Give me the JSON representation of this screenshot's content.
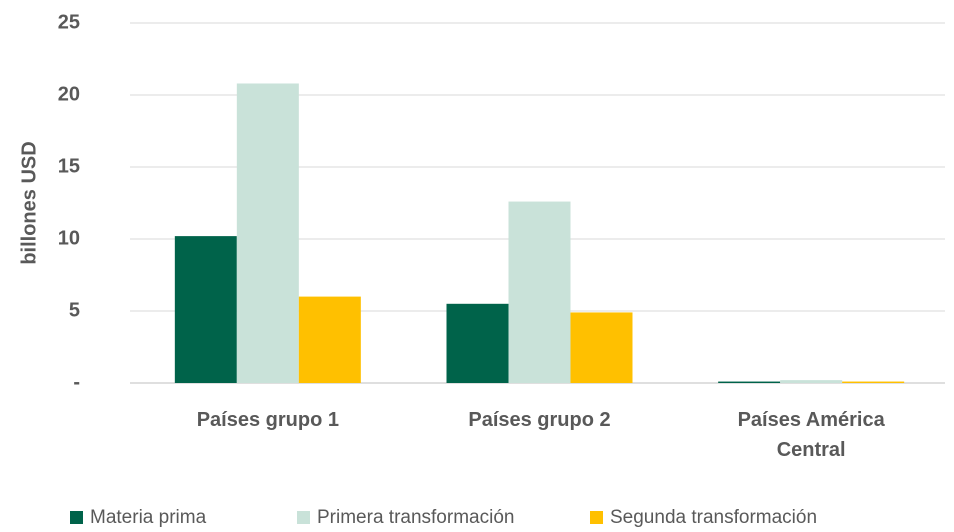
{
  "chart_data": {
    "type": "bar",
    "y_label": "billones USD",
    "categories": [
      "Países grupo 1",
      "Países grupo 2",
      "Países América Central"
    ],
    "series": [
      {
        "name": "Materia prima",
        "color": "#00634a",
        "values": [
          10.2,
          5.5,
          0.1
        ]
      },
      {
        "name": "Primera transformación",
        "color": "#c9e2d9",
        "values": [
          20.8,
          12.6,
          0.2
        ]
      },
      {
        "name": "Segunda transformación",
        "color": "#ffc000",
        "values": [
          6.0,
          4.9,
          0.1
        ]
      }
    ],
    "ylim": [
      0,
      25
    ],
    "yticks": [
      {
        "value": 0,
        "label": "-"
      },
      5,
      10,
      15,
      20,
      25
    ],
    "grid": true,
    "legend": "bottom"
  }
}
